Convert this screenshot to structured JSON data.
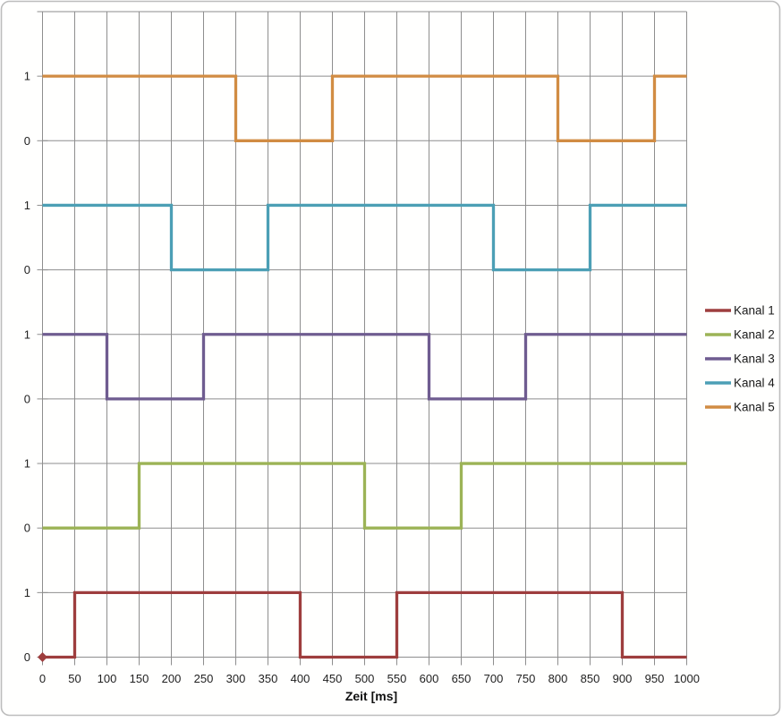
{
  "chart_data": {
    "type": "line",
    "subtype": "digital_timing_diagram",
    "title": "",
    "xlabel": "Zeit [ms]",
    "ylabel": "",
    "x_range": [
      0,
      1000
    ],
    "x_tick_step_ms": 50,
    "x_tick_labels": [
      "0",
      "50",
      "100",
      "150",
      "200",
      "250",
      "300",
      "350",
      "400",
      "450",
      "500",
      "550",
      "600",
      "650",
      "700",
      "750",
      "800",
      "850",
      "900",
      "950",
      "1000"
    ],
    "y_tick_labels": [
      "0",
      "1",
      "0",
      "1",
      "0",
      "1",
      "0",
      "1",
      "0",
      "1"
    ],
    "grid": true,
    "grid_color": "#8E8E8E",
    "axis_text_color": "#212121",
    "legend_position": "right",
    "legend": [
      "Kanal 1",
      "Kanal 2",
      "Kanal 3",
      "Kanal 4",
      "Kanal 5"
    ],
    "series": [
      {
        "name": "Kanal 1",
        "color": "#9E3E3E",
        "lane_offset": 0,
        "marker": {
          "shape": "diamond",
          "t": 0,
          "value": 0
        },
        "steps": [
          [
            0,
            0
          ],
          [
            50,
            1
          ],
          [
            400,
            0
          ],
          [
            550,
            1
          ],
          [
            900,
            0
          ]
        ]
      },
      {
        "name": "Kanal 2",
        "color": "#9CB356",
        "lane_offset": 2,
        "steps": [
          [
            0,
            0
          ],
          [
            150,
            1
          ],
          [
            500,
            0
          ],
          [
            650,
            1
          ]
        ]
      },
      {
        "name": "Kanal 3",
        "color": "#6F5C90",
        "lane_offset": 4,
        "steps": [
          [
            0,
            1
          ],
          [
            100,
            0
          ],
          [
            250,
            1
          ],
          [
            600,
            0
          ],
          [
            750,
            1
          ]
        ]
      },
      {
        "name": "Kanal 4",
        "color": "#4C9FB5",
        "lane_offset": 6,
        "steps": [
          [
            0,
            1
          ],
          [
            200,
            0
          ],
          [
            350,
            1
          ],
          [
            700,
            0
          ],
          [
            850,
            1
          ]
        ]
      },
      {
        "name": "Kanal 5",
        "color": "#D18C43",
        "lane_offset": 8,
        "steps": [
          [
            0,
            1
          ],
          [
            300,
            0
          ],
          [
            450,
            1
          ],
          [
            800,
            0
          ],
          [
            950,
            1
          ]
        ]
      }
    ]
  }
}
